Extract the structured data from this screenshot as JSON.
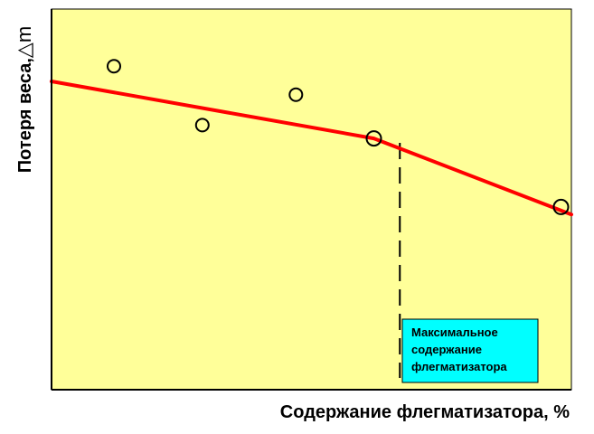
{
  "chart_data": {
    "type": "scatter",
    "title": "",
    "xlabel": "Содержание флегматизатора, %",
    "ylabel": "Потеря веса,",
    "ylabel_symbol": "△m",
    "xlim": [
      0,
      10
    ],
    "ylim": [
      0,
      10
    ],
    "grid": false,
    "points": {
      "x": [
        1.2,
        2.9,
        4.7,
        6.2,
        9.8
      ],
      "y": [
        8.5,
        6.95,
        7.75,
        6.6,
        4.8
      ]
    },
    "trend_line": {
      "x": [
        0,
        6.2,
        10
      ],
      "y": [
        8.1,
        6.6,
        4.6
      ]
    },
    "marker_line": {
      "x": 6.7
    },
    "annotation": {
      "lines": [
        "Максимальное",
        "содержание",
        "флегматизатора"
      ]
    },
    "colors": {
      "plot_background": "#FFFF99",
      "trend_line": "#FF0000",
      "annotation_background": "#00FFFF",
      "axis": "#000000"
    }
  }
}
